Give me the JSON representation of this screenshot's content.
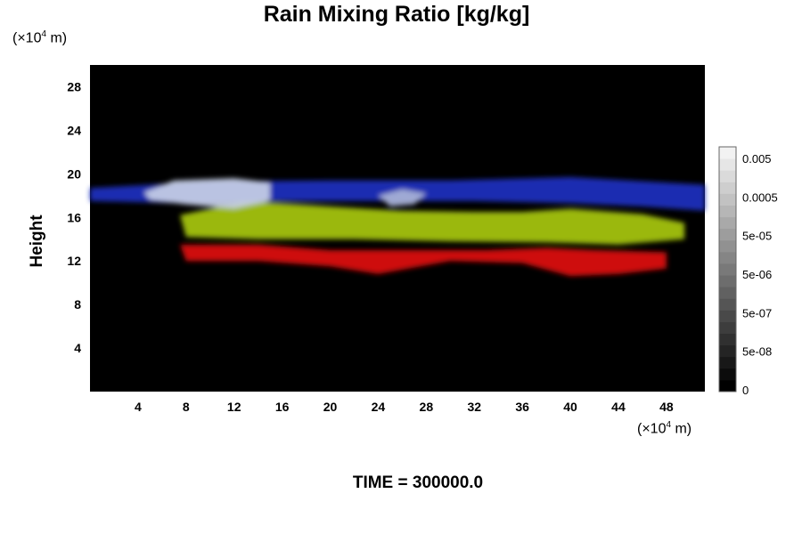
{
  "chart_data": {
    "type": "heatmap",
    "title": "Rain Mixing Ratio [kg/kg]",
    "ylabel": "Height",
    "xlabel": "",
    "x_unit": "(×10",
    "x_unit_exp": "4",
    "x_unit_suffix": " m)",
    "y_unit": "(×10",
    "y_unit_exp": "4",
    "y_unit_suffix": " m)",
    "xlim": [
      0,
      51.2
    ],
    "ylim": [
      0,
      30
    ],
    "x_ticks": [
      4,
      8,
      12,
      16,
      20,
      24,
      28,
      32,
      36,
      40,
      44,
      48
    ],
    "y_ticks": [
      4,
      8,
      12,
      16,
      20,
      24,
      28
    ],
    "background": "#000000",
    "layers": [
      {
        "color": "#e01010",
        "points": [
          [
            7.5,
            13.5
          ],
          [
            14,
            13.5
          ],
          [
            20,
            13.0
          ],
          [
            26,
            13.0
          ],
          [
            33,
            13.0
          ],
          [
            38,
            13.2
          ],
          [
            42,
            13.0
          ],
          [
            48,
            12.8
          ],
          [
            48,
            11.3
          ],
          [
            44,
            10.8
          ],
          [
            40,
            10.6
          ],
          [
            36,
            11.8
          ],
          [
            30,
            12.0
          ],
          [
            24,
            10.8
          ],
          [
            20,
            11.5
          ],
          [
            14,
            12.0
          ],
          [
            8,
            12.0
          ]
        ]
      },
      {
        "color": "#a8c810",
        "points": [
          [
            7.5,
            16.2
          ],
          [
            13,
            17.5
          ],
          [
            20,
            17.0
          ],
          [
            26,
            16.6
          ],
          [
            32,
            16.5
          ],
          [
            36,
            16.5
          ],
          [
            40,
            16.8
          ],
          [
            46,
            16.3
          ],
          [
            49.5,
            15.5
          ],
          [
            49.5,
            14.0
          ],
          [
            44,
            13.5
          ],
          [
            38,
            13.7
          ],
          [
            30,
            13.8
          ],
          [
            22,
            14.0
          ],
          [
            14,
            14.0
          ],
          [
            8,
            14.2
          ]
        ]
      },
      {
        "color": "#2030c0",
        "points": [
          [
            0,
            18.7
          ],
          [
            10,
            19.3
          ],
          [
            20,
            19.4
          ],
          [
            30,
            19.4
          ],
          [
            40,
            19.7
          ],
          [
            51.2,
            19.0
          ],
          [
            51.2,
            16.6
          ],
          [
            46,
            17.0
          ],
          [
            40,
            17.3
          ],
          [
            32,
            17.5
          ],
          [
            24,
            17.5
          ],
          [
            16,
            17.5
          ],
          [
            8,
            17.3
          ],
          [
            0,
            17.5
          ]
        ]
      },
      {
        "color": "#c8d0e6",
        "points": [
          [
            4.5,
            18.3
          ],
          [
            7,
            19.4
          ],
          [
            12,
            19.6
          ],
          [
            15,
            19.2
          ],
          [
            15,
            17.5
          ],
          [
            12,
            16.8
          ],
          [
            8,
            17.2
          ],
          [
            5,
            17.6
          ]
        ]
      },
      {
        "color": "#aab4d8",
        "points": [
          [
            24,
            18.0
          ],
          [
            26,
            18.6
          ],
          [
            28,
            18.2
          ],
          [
            27,
            17.2
          ],
          [
            25,
            17.0
          ]
        ]
      }
    ],
    "colorbar": {
      "labels": [
        "0.005",
        "0.0005",
        "5e-05",
        "5e-06",
        "5e-07",
        "5e-08",
        "0"
      ],
      "levels": 21,
      "color_low": "#000000",
      "color_high": "#f2f2f2"
    }
  },
  "footer": {
    "time_label": "TIME = 300000.0"
  }
}
